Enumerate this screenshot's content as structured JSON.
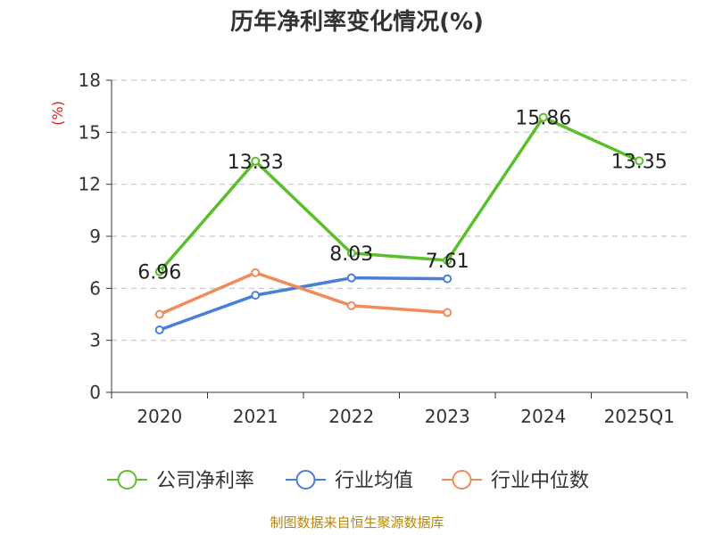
{
  "chart_data": {
    "type": "line",
    "title": "历年净利率变化情况(%)",
    "ylabel": "(%)",
    "xlabel": "",
    "categories": [
      "2020",
      "2021",
      "2022",
      "2023",
      "2024",
      "2025Q1"
    ],
    "ylim": [
      0,
      18
    ],
    "yticks": [
      0,
      3,
      6,
      9,
      12,
      15,
      18
    ],
    "grid": true,
    "legend_position": "bottom",
    "series": [
      {
        "name": "公司净利率",
        "color": "#5cbf2a",
        "values": [
          6.96,
          13.33,
          8.03,
          7.61,
          15.86,
          13.35
        ],
        "labels": [
          "6.96",
          "13.33",
          "8.03",
          "7.61",
          "15.86",
          "13.35"
        ]
      },
      {
        "name": "行业均值",
        "color": "#4a7fd9",
        "values": [
          3.6,
          5.6,
          6.6,
          6.55,
          null,
          null
        ]
      },
      {
        "name": "行业中位数",
        "color": "#f08c5a",
        "values": [
          4.5,
          6.9,
          5.0,
          4.6,
          null,
          null
        ]
      }
    ],
    "source": "制图数据来自恒生聚源数据库"
  }
}
